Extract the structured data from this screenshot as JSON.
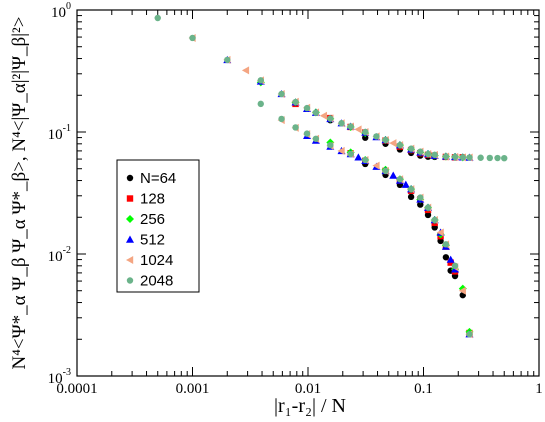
{
  "chart_data": {
    "type": "scatter",
    "xscale": "log",
    "yscale": "log",
    "xlim": [
      0.0001,
      1
    ],
    "ylim": [
      0.001,
      1
    ],
    "grid": false,
    "legend_position": "left-center",
    "xlabel": "|r₁-r₂| / N",
    "ylabel_parts": {
      "upper": "N⁴<|Ψ_α|²|Ψ_β|²>",
      "lower": "N⁴<Ψ*_α Ψ_β Ψ_α Ψ*_β>",
      "separator": ", "
    },
    "xticks": [
      {
        "v": 0.0001,
        "label": "0.0001"
      },
      {
        "v": 0.001,
        "label": "0.001"
      },
      {
        "v": 0.01,
        "label": "0.01"
      },
      {
        "v": 0.1,
        "label": "0.1"
      },
      {
        "v": 1,
        "label": "1"
      }
    ],
    "yticks": [
      {
        "v": 1,
        "base": "10",
        "exp": "0"
      },
      {
        "v": 0.1,
        "base": "10",
        "exp": "-1"
      },
      {
        "v": 0.01,
        "base": "10",
        "exp": "-2"
      },
      {
        "v": 0.001,
        "base": "10",
        "exp": "-3"
      }
    ],
    "series": [
      {
        "name": "N=64",
        "color": "#000000",
        "marker": "circle",
        "points": [
          [
            0.0156,
            0.125
          ],
          [
            0.0313,
            0.0898
          ],
          [
            0.0469,
            0.0801
          ],
          [
            0.0625,
            0.0719
          ],
          [
            0.0781,
            0.0674
          ],
          [
            0.0938,
            0.0641
          ],
          [
            0.1094,
            0.0627
          ],
          [
            0.125,
            0.0625
          ],
          [
            0.0313,
            0.0547
          ],
          [
            0.0469,
            0.0445
          ],
          [
            0.0625,
            0.0369
          ],
          [
            0.0781,
            0.0294
          ],
          [
            0.0938,
            0.0254
          ],
          [
            0.1094,
            0.0209
          ],
          [
            0.125,
            0.0165
          ],
          [
            0.1406,
            0.0128
          ],
          [
            0.1563,
            0.0094
          ],
          [
            0.1719,
            0.0073
          ],
          [
            0.1875,
            0.0066
          ],
          [
            0.2188,
            0.0046
          ]
        ]
      },
      {
        "name": "128",
        "color": "#ff0000",
        "marker": "square",
        "points": [
          [
            0.0078,
            0.17
          ],
          [
            0.0156,
            0.13
          ],
          [
            0.0234,
            0.11
          ],
          [
            0.0313,
            0.099
          ],
          [
            0.0469,
            0.085
          ],
          [
            0.0625,
            0.076
          ],
          [
            0.0781,
            0.071
          ],
          [
            0.0938,
            0.067
          ],
          [
            0.1094,
            0.065
          ],
          [
            0.125,
            0.064
          ],
          [
            0.1563,
            0.0625
          ],
          [
            0.1875,
            0.062
          ],
          [
            0.2188,
            0.062
          ],
          [
            0.0234,
            0.067
          ],
          [
            0.0313,
            0.058
          ],
          [
            0.0469,
            0.048
          ],
          [
            0.0625,
            0.04
          ],
          [
            0.0781,
            0.033
          ],
          [
            0.0938,
            0.028
          ],
          [
            0.1094,
            0.023
          ],
          [
            0.125,
            0.018
          ],
          [
            0.1406,
            0.014
          ],
          [
            0.1563,
            0.0115
          ],
          [
            0.1719,
            0.0085
          ],
          [
            0.1875,
            0.0072
          ],
          [
            0.25,
            0.00225
          ]
        ]
      },
      {
        "name": "256",
        "color": "#00ff00",
        "marker": "diamond",
        "points": [
          [
            0.0039,
            0.255
          ],
          [
            0.0078,
            0.175
          ],
          [
            0.0117,
            0.145
          ],
          [
            0.0156,
            0.128
          ],
          [
            0.0234,
            0.11
          ],
          [
            0.0313,
            0.098
          ],
          [
            0.0469,
            0.086
          ],
          [
            0.0625,
            0.078
          ],
          [
            0.0781,
            0.072
          ],
          [
            0.0938,
            0.068
          ],
          [
            0.1094,
            0.066
          ],
          [
            0.125,
            0.064
          ],
          [
            0.1563,
            0.063
          ],
          [
            0.1875,
            0.0625
          ],
          [
            0.2188,
            0.062
          ],
          [
            0.0156,
            0.082
          ],
          [
            0.0234,
            0.068
          ],
          [
            0.0313,
            0.059
          ],
          [
            0.0469,
            0.049
          ],
          [
            0.0625,
            0.041
          ],
          [
            0.0781,
            0.034
          ],
          [
            0.0938,
            0.028
          ],
          [
            0.1094,
            0.024
          ],
          [
            0.125,
            0.019
          ],
          [
            0.1406,
            0.0145
          ],
          [
            0.1563,
            0.0118
          ],
          [
            0.1875,
            0.0075
          ],
          [
            0.2188,
            0.0052
          ],
          [
            0.25,
            0.0023
          ]
        ]
      },
      {
        "name": "512",
        "color": "#0000ff",
        "marker": "triangle",
        "points": [
          [
            0.002,
            0.39
          ],
          [
            0.0039,
            0.26
          ],
          [
            0.0059,
            0.205
          ],
          [
            0.0078,
            0.175
          ],
          [
            0.0098,
            0.155
          ],
          [
            0.0117,
            0.144
          ],
          [
            0.0156,
            0.128
          ],
          [
            0.0195,
            0.118
          ],
          [
            0.0234,
            0.111
          ],
          [
            0.0313,
            0.099
          ],
          [
            0.0391,
            0.091
          ],
          [
            0.0469,
            0.086
          ],
          [
            0.0625,
            0.078
          ],
          [
            0.0781,
            0.072
          ],
          [
            0.0938,
            0.068
          ],
          [
            0.1094,
            0.066
          ],
          [
            0.125,
            0.064
          ],
          [
            0.1563,
            0.063
          ],
          [
            0.1875,
            0.0625
          ],
          [
            0.2188,
            0.062
          ],
          [
            0.25,
            0.0618
          ],
          [
            0.0098,
            0.093
          ],
          [
            0.0117,
            0.085
          ],
          [
            0.0156,
            0.076
          ],
          [
            0.0195,
            0.07
          ],
          [
            0.0234,
            0.066
          ],
          [
            0.0273,
            0.062
          ],
          [
            0.0313,
            0.058
          ],
          [
            0.0391,
            0.052
          ],
          [
            0.0469,
            0.048
          ],
          [
            0.0547,
            0.044
          ],
          [
            0.0625,
            0.04
          ],
          [
            0.0703,
            0.037
          ],
          [
            0.0781,
            0.034
          ],
          [
            0.0938,
            0.028
          ],
          [
            0.1094,
            0.024
          ],
          [
            0.125,
            0.019
          ],
          [
            0.1406,
            0.015
          ],
          [
            0.1563,
            0.0115
          ],
          [
            0.1719,
            0.009
          ],
          [
            0.1875,
            0.0075
          ],
          [
            0.25,
            0.0022
          ]
        ]
      },
      {
        "name": "1024",
        "color": "#f4a582",
        "marker": "triangle-left",
        "points": [
          [
            0.001,
            0.59
          ],
          [
            0.002,
            0.39
          ],
          [
            0.0029,
            0.32
          ],
          [
            0.0039,
            0.265
          ],
          [
            0.0059,
            0.205
          ],
          [
            0.0078,
            0.177
          ],
          [
            0.0098,
            0.158
          ],
          [
            0.0117,
            0.145
          ],
          [
            0.0137,
            0.136
          ],
          [
            0.0156,
            0.129
          ],
          [
            0.0195,
            0.118
          ],
          [
            0.0234,
            0.111
          ],
          [
            0.0273,
            0.105
          ],
          [
            0.0313,
            0.1
          ],
          [
            0.0391,
            0.092
          ],
          [
            0.0469,
            0.086
          ],
          [
            0.0547,
            0.081
          ],
          [
            0.0625,
            0.078
          ],
          [
            0.0781,
            0.073
          ],
          [
            0.0938,
            0.069
          ],
          [
            0.1094,
            0.066
          ],
          [
            0.125,
            0.065
          ],
          [
            0.1563,
            0.063
          ],
          [
            0.1875,
            0.0625
          ],
          [
            0.2188,
            0.062
          ],
          [
            0.25,
            0.0618
          ],
          [
            0.0059,
            0.125
          ],
          [
            0.0078,
            0.108
          ],
          [
            0.0098,
            0.096
          ],
          [
            0.0117,
            0.088
          ],
          [
            0.0156,
            0.077
          ],
          [
            0.0195,
            0.07
          ],
          [
            0.0234,
            0.066
          ],
          [
            0.0313,
            0.059
          ],
          [
            0.0391,
            0.053
          ],
          [
            0.0469,
            0.048
          ],
          [
            0.0625,
            0.041
          ],
          [
            0.0781,
            0.034
          ],
          [
            0.0938,
            0.029
          ],
          [
            0.1094,
            0.024
          ],
          [
            0.125,
            0.019
          ],
          [
            0.1406,
            0.015
          ],
          [
            0.1563,
            0.012
          ],
          [
            0.1875,
            0.0078
          ],
          [
            0.2188,
            0.005
          ],
          [
            0.25,
            0.0022
          ]
        ]
      },
      {
        "name": "2048",
        "color": "#6bb38a",
        "marker": "circle",
        "points": [
          [
            0.0005,
            0.86
          ],
          [
            0.001,
            0.59
          ],
          [
            0.002,
            0.39
          ],
          [
            0.0039,
            0.265
          ],
          [
            0.0059,
            0.205
          ],
          [
            0.0078,
            0.176
          ],
          [
            0.0098,
            0.157
          ],
          [
            0.0117,
            0.144
          ],
          [
            0.0156,
            0.129
          ],
          [
            0.0195,
            0.118
          ],
          [
            0.0234,
            0.111
          ],
          [
            0.0313,
            0.1
          ],
          [
            0.0391,
            0.092
          ],
          [
            0.0469,
            0.086
          ],
          [
            0.0625,
            0.078
          ],
          [
            0.0781,
            0.073
          ],
          [
            0.0938,
            0.069
          ],
          [
            0.1094,
            0.066
          ],
          [
            0.125,
            0.065
          ],
          [
            0.1563,
            0.063
          ],
          [
            0.1875,
            0.0625
          ],
          [
            0.2188,
            0.062
          ],
          [
            0.25,
            0.0618
          ],
          [
            0.3125,
            0.0615
          ],
          [
            0.375,
            0.0613
          ],
          [
            0.4375,
            0.0612
          ],
          [
            0.5,
            0.061
          ],
          [
            0.0039,
            0.17
          ],
          [
            0.0059,
            0.128
          ],
          [
            0.0078,
            0.109
          ],
          [
            0.0098,
            0.097
          ],
          [
            0.0117,
            0.088
          ],
          [
            0.0156,
            0.078
          ],
          [
            0.0234,
            0.066
          ],
          [
            0.0313,
            0.059
          ],
          [
            0.0469,
            0.048
          ],
          [
            0.0625,
            0.041
          ],
          [
            0.0781,
            0.034
          ],
          [
            0.0938,
            0.029
          ],
          [
            0.1094,
            0.024
          ],
          [
            0.125,
            0.019
          ],
          [
            0.1563,
            0.012
          ],
          [
            0.1875,
            0.008
          ],
          [
            0.25,
            0.0022
          ]
        ]
      }
    ]
  }
}
